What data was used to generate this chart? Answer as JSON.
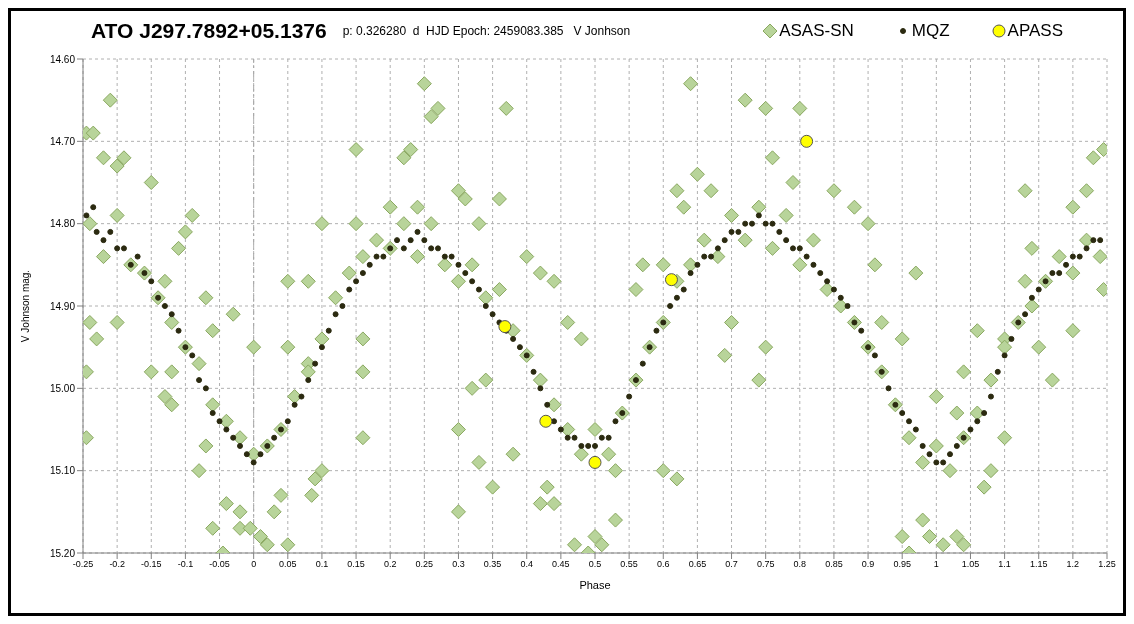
{
  "chart_data": {
    "type": "scatter",
    "title": "ATO J297.7892+05.1376",
    "subtitle": "p: 0.326280  d  HJD Epoch: 2459083.385   V Jonhson",
    "xlabel": "Phase",
    "ylabel": "V Johnson mag.",
    "xlim": [
      -0.25,
      1.25
    ],
    "xticks": [
      -0.25,
      -0.2,
      -0.15,
      -0.1,
      -0.05,
      0,
      0.05,
      0.1,
      0.15,
      0.2,
      0.25,
      0.3,
      0.35,
      0.4,
      0.45,
      0.5,
      0.55,
      0.6,
      0.65,
      0.7,
      0.75,
      0.8,
      0.85,
      0.9,
      0.95,
      1,
      1.05,
      1.1,
      1.15,
      1.2,
      1.25
    ],
    "ylim": [
      15.2,
      14.6
    ],
    "yticks": [
      {
        "value": 15.2,
        "label": "15.20"
      },
      {
        "value": 15.1,
        "label": "15.10"
      },
      {
        "value": 15.0,
        "label": "15.00"
      },
      {
        "value": 14.9,
        "label": "14.90"
      },
      {
        "value": 14.8,
        "label": "14.80"
      },
      {
        "value": 14.7,
        "label": "14.70"
      },
      {
        "value": 14.6,
        "label": "14.60"
      }
    ],
    "grid": true,
    "legend": "top right",
    "ref_lines": [
      {
        "axis": "x",
        "value": 0,
        "color": "#a6a6a6",
        "line_style": "dashed"
      }
    ],
    "series": [
      {
        "name": "ASAS-SN",
        "color": "#b8d49a",
        "marker": "diamond",
        "x": [
          -0.245,
          -0.235,
          -0.22,
          -0.2,
          -0.19,
          -0.21,
          -0.245,
          -0.245,
          -0.24,
          -0.23,
          -0.2,
          -0.15,
          -0.13,
          -0.09,
          -0.1,
          -0.11,
          -0.12,
          -0.15,
          -0.13,
          -0.12,
          -0.07,
          -0.06,
          -0.03,
          -0.08,
          -0.07,
          -0.06,
          -0.04,
          -0.045,
          -0.02,
          -0.02,
          -0.005,
          0.01,
          0.02,
          0.03,
          0.05,
          0.04,
          0.0,
          0.05,
          0.08,
          0.09,
          0.085,
          0.1,
          0.05,
          0.08,
          0.15,
          0.15,
          0.1,
          0.16,
          0.16,
          0.16,
          0.2,
          0.22,
          0.23,
          0.24,
          0.25,
          0.26,
          0.27,
          0.3,
          0.31,
          0.33,
          0.36,
          0.37,
          0.3,
          0.3,
          0.33,
          0.35,
          0.38,
          0.32,
          0.34,
          0.4,
          0.42,
          0.44,
          0.46,
          0.48,
          0.43,
          0.42,
          0.44,
          0.47,
          0.5,
          0.51,
          0.49,
          0.53,
          0.56,
          0.57,
          0.6,
          0.62,
          0.64,
          0.63,
          0.65,
          0.67,
          0.72,
          0.75,
          0.76,
          0.8,
          0.79,
          0.6,
          0.62,
          0.53,
          0.7,
          0.69,
          0.75,
          0.74,
          0.85,
          0.88,
          0.9,
          0.91,
          0.92,
          0.95,
          0.97,
          1.0,
          1.03,
          0.95,
          0.96,
          0.98,
          0.99,
          1.01,
          1.03,
          1.04,
          1.07,
          1.08,
          1.1,
          1.04,
          1.06,
          1.1,
          1.13,
          1.14,
          1.13,
          1.2,
          1.22,
          1.23,
          1.245,
          1.15,
          1.17,
          1.2,
          1.245,
          -0.24,
          -0.22,
          -0.2,
          -0.18,
          -0.16,
          -0.14,
          -0.12,
          -0.1,
          -0.08,
          -0.06,
          -0.04,
          -0.02,
          0.0,
          0.02,
          0.04,
          0.06,
          0.08,
          0.1,
          0.12,
          0.14,
          0.16,
          0.18,
          0.2,
          0.22,
          0.24,
          0.26,
          0.28,
          0.3,
          0.32,
          0.34,
          0.36,
          0.38,
          0.4,
          0.42,
          0.44,
          0.46,
          0.48,
          0.5,
          0.52,
          0.54,
          0.56,
          0.58,
          0.6,
          0.62,
          0.64,
          0.66,
          0.68,
          0.7,
          0.72,
          0.74,
          0.76,
          0.78,
          0.8,
          0.82,
          0.84,
          0.86,
          0.88,
          0.9,
          0.92,
          0.94,
          0.96,
          0.98,
          1.0,
          1.02,
          1.04,
          1.06,
          1.08,
          1.1,
          1.12,
          1.14,
          1.16,
          1.18,
          1.2,
          1.22,
          1.24
        ],
        "values": [
          14.69,
          14.69,
          14.72,
          14.73,
          14.72,
          14.65,
          15.06,
          14.98,
          14.92,
          14.94,
          14.92,
          14.75,
          14.87,
          14.79,
          14.81,
          14.83,
          14.98,
          14.98,
          15.01,
          15.02,
          14.89,
          14.93,
          14.91,
          15.1,
          15.07,
          15.17,
          15.14,
          15.2,
          15.15,
          15.17,
          15.17,
          15.18,
          15.19,
          15.15,
          15.19,
          15.13,
          14.95,
          14.95,
          14.97,
          15.11,
          15.13,
          15.1,
          14.87,
          14.87,
          14.71,
          14.8,
          14.8,
          14.94,
          15.06,
          14.98,
          14.78,
          14.72,
          14.71,
          14.78,
          14.63,
          14.67,
          14.66,
          14.76,
          14.77,
          14.8,
          14.77,
          14.66,
          15.05,
          15.15,
          15.09,
          15.12,
          15.08,
          15.0,
          14.99,
          14.84,
          14.86,
          14.87,
          14.92,
          14.94,
          15.12,
          15.14,
          15.14,
          15.19,
          15.18,
          15.19,
          15.2,
          15.16,
          14.88,
          14.85,
          14.85,
          14.76,
          14.63,
          14.78,
          14.74,
          14.76,
          14.65,
          14.66,
          14.72,
          14.66,
          14.75,
          15.1,
          15.11,
          15.1,
          14.92,
          14.96,
          14.95,
          14.99,
          14.76,
          14.78,
          14.8,
          14.85,
          14.92,
          14.94,
          14.86,
          15.01,
          15.03,
          15.18,
          15.2,
          15.16,
          15.18,
          15.19,
          15.18,
          15.19,
          15.12,
          15.1,
          15.06,
          14.98,
          14.93,
          14.94,
          14.76,
          14.83,
          14.87,
          14.78,
          14.76,
          14.72,
          14.71,
          14.95,
          14.99,
          14.93,
          14.88,
          14.8,
          14.84,
          14.79,
          14.85,
          14.86,
          14.89,
          14.92,
          14.95,
          14.97,
          15.02,
          15.04,
          15.06,
          15.08,
          15.07,
          15.05,
          15.01,
          14.98,
          14.94,
          14.89,
          14.86,
          14.84,
          14.82,
          14.83,
          14.8,
          14.84,
          14.8,
          14.85,
          14.87,
          14.85,
          14.89,
          14.88,
          14.93,
          14.96,
          14.99,
          15.02,
          15.05,
          15.08,
          15.05,
          15.08,
          15.03,
          14.99,
          14.95,
          14.92,
          14.87,
          14.85,
          14.82,
          14.84,
          14.79,
          14.82,
          14.78,
          14.83,
          14.79,
          14.85,
          14.82,
          14.88,
          14.9,
          14.92,
          14.95,
          14.98,
          15.02,
          15.06,
          15.09,
          15.07,
          15.1,
          15.06,
          15.03,
          14.99,
          14.95,
          14.92,
          14.9,
          14.87,
          14.84,
          14.86,
          14.82,
          14.84
        ]
      },
      {
        "name": "MQZ",
        "color": "#2b2a10",
        "marker": "circle",
        "x": [
          -0.245,
          -0.235,
          -0.23,
          -0.22,
          -0.21,
          -0.2,
          -0.19,
          -0.18,
          -0.17,
          -0.16,
          -0.15,
          -0.14,
          -0.13,
          -0.12,
          -0.11,
          -0.1,
          -0.09,
          -0.08,
          -0.07,
          -0.06,
          -0.05,
          -0.04,
          -0.03,
          -0.02,
          -0.01,
          0.0,
          0.01,
          0.02,
          0.03,
          0.04,
          0.05,
          0.06,
          0.07,
          0.08,
          0.09,
          0.1,
          0.11,
          0.12,
          0.13,
          0.14,
          0.15,
          0.16,
          0.17,
          0.18,
          0.19,
          0.2,
          0.21,
          0.22,
          0.23,
          0.24,
          0.25,
          0.26,
          0.27,
          0.28,
          0.29,
          0.3,
          0.31,
          0.32,
          0.33,
          0.34,
          0.35,
          0.36,
          0.37,
          0.38,
          0.39,
          0.4,
          0.41,
          0.42,
          0.43,
          0.44,
          0.45,
          0.46,
          0.47,
          0.48,
          0.49,
          0.5,
          0.51,
          0.52,
          0.53,
          0.54,
          0.55,
          0.56,
          0.57,
          0.58,
          0.59,
          0.6,
          0.61,
          0.62,
          0.63,
          0.64,
          0.65,
          0.66,
          0.67,
          0.68,
          0.69,
          0.7,
          0.71,
          0.72,
          0.73,
          0.74,
          0.75,
          0.76,
          0.77,
          0.78,
          0.79,
          0.8,
          0.81,
          0.82,
          0.83,
          0.84,
          0.85,
          0.86,
          0.87,
          0.88,
          0.89,
          0.9,
          0.91,
          0.92,
          0.93,
          0.94,
          0.95,
          0.96,
          0.97,
          0.98,
          0.99,
          1.0,
          1.01,
          1.02,
          1.03,
          1.04,
          1.05,
          1.06,
          1.07,
          1.08,
          1.09,
          1.1,
          1.11,
          1.12,
          1.13,
          1.14,
          1.15,
          1.16,
          1.17,
          1.18,
          1.19,
          1.2,
          1.21,
          1.22,
          1.23,
          1.24
        ],
        "values": [
          14.79,
          14.78,
          14.81,
          14.82,
          14.81,
          14.83,
          14.83,
          14.85,
          14.84,
          14.86,
          14.87,
          14.89,
          14.9,
          14.91,
          14.93,
          14.95,
          14.96,
          14.99,
          15.0,
          15.03,
          15.04,
          15.05,
          15.06,
          15.07,
          15.08,
          15.09,
          15.08,
          15.07,
          15.06,
          15.05,
          15.04,
          15.02,
          15.01,
          14.99,
          14.97,
          14.95,
          14.93,
          14.91,
          14.9,
          14.88,
          14.87,
          14.86,
          14.85,
          14.84,
          14.84,
          14.83,
          14.82,
          14.83,
          14.82,
          14.81,
          14.82,
          14.83,
          14.83,
          14.84,
          14.84,
          14.85,
          14.86,
          14.87,
          14.88,
          14.9,
          14.91,
          14.92,
          14.93,
          14.94,
          14.95,
          14.96,
          14.98,
          15.0,
          15.02,
          15.04,
          15.05,
          15.06,
          15.06,
          15.07,
          15.07,
          15.07,
          15.06,
          15.06,
          15.04,
          15.03,
          15.01,
          14.99,
          14.97,
          14.95,
          14.93,
          14.92,
          14.9,
          14.89,
          14.88,
          14.86,
          14.85,
          14.84,
          14.84,
          14.83,
          14.82,
          14.81,
          14.81,
          14.8,
          14.8,
          14.79,
          14.8,
          14.8,
          14.81,
          14.82,
          14.83,
          14.83,
          14.84,
          14.85,
          14.86,
          14.87,
          14.88,
          14.89,
          14.9,
          14.92,
          14.93,
          14.95,
          14.96,
          14.98,
          15.0,
          15.02,
          15.03,
          15.04,
          15.05,
          15.07,
          15.08,
          15.09,
          15.09,
          15.08,
          15.07,
          15.06,
          15.05,
          15.04,
          15.03,
          15.01,
          14.98,
          14.96,
          14.94,
          14.92,
          14.91,
          14.89,
          14.88,
          14.87,
          14.86,
          14.86,
          14.85,
          14.84,
          14.84,
          14.83,
          14.82,
          14.82
        ]
      },
      {
        "name": "APASS",
        "color": "#ffff00",
        "marker": "circle",
        "x": [
          0.368,
          0.428,
          0.5,
          0.612,
          0.81
        ],
        "values": [
          14.925,
          15.04,
          15.09,
          14.868,
          14.7
        ]
      }
    ]
  }
}
